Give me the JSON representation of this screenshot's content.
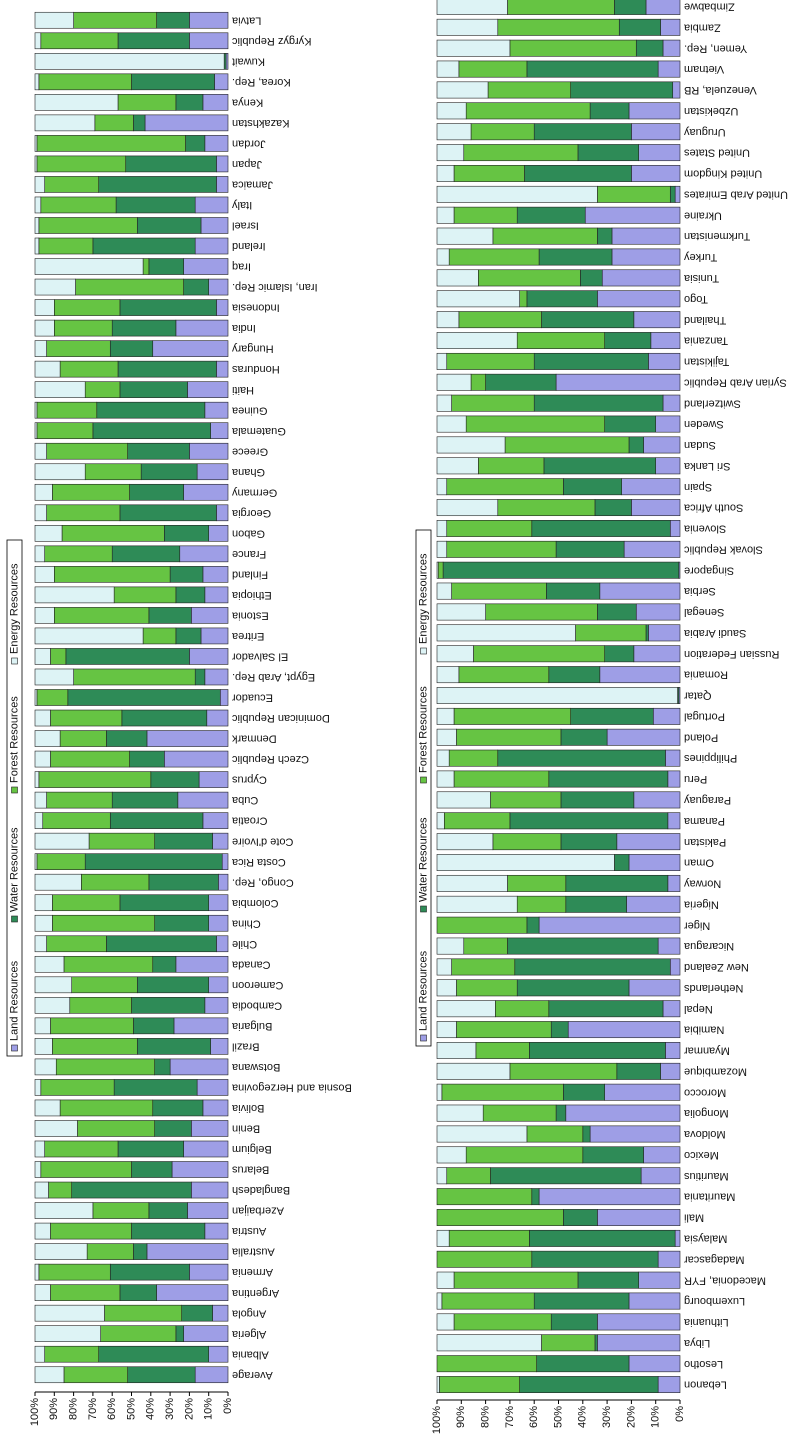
{
  "chart_data": [
    {
      "type": "bar",
      "orientation": "horizontal",
      "stacked": true,
      "categories": [
        "Average",
        "Albania",
        "Algeria",
        "Angola",
        "Argentina",
        "Armenia",
        "Australia",
        "Austria",
        "Azerbaijan",
        "Bangladesh",
        "Belarus",
        "Belgium",
        "Benin",
        "Bolivia",
        "Bosnia and Herzegovina",
        "Botswana",
        "Brazil",
        "Bulgaria",
        "Cambodia",
        "Cameroon",
        "Canada",
        "Chile",
        "China",
        "Colombia",
        "Congo, Rep.",
        "Costa Rica",
        "Cote d'Ivoire",
        "Croatia",
        "Cuba",
        "Cyprus",
        "Czech Republic",
        "Denmark",
        "Dominican Republic",
        "Ecuador",
        "Egypt, Arab Rep.",
        "El Salvador",
        "Eritrea",
        "Estonia",
        "Ethiopia",
        "Finland",
        "France",
        "Gabon",
        "Georgia",
        "Germany",
        "Ghana",
        "Greece",
        "Guatemala",
        "Guinea",
        "Haiti",
        "Honduras",
        "Hungary",
        "India",
        "Indonesia",
        "Iran, Islamic Rep.",
        "Iraq",
        "Ireland",
        "Israel",
        "Italy",
        "Jamaica",
        "Japan",
        "Jordan",
        "Kazakhstan",
        "Kenya",
        "Korea, Rep.",
        "Kuwait",
        "Kyrgyz Republic",
        "Latvia"
      ],
      "series": [
        {
          "name": "Land Resources",
          "color": "#9e9ee6",
          "values": [
            17,
            10,
            23,
            8,
            37,
            20,
            42,
            12,
            21,
            19,
            29,
            23,
            19,
            13,
            16,
            30,
            9,
            28,
            12,
            10,
            27,
            6,
            10,
            10,
            5,
            3,
            8,
            13,
            26,
            15,
            33,
            42,
            11,
            4,
            12,
            20,
            14,
            19,
            12,
            13,
            25,
            10,
            6,
            23,
            16,
            20,
            9,
            12,
            21,
            6,
            39,
            27,
            6,
            10,
            23,
            17,
            14,
            17,
            6,
            6,
            12,
            43,
            13,
            7,
            1,
            20,
            20
          ]
        },
        {
          "name": "Water Resources",
          "color": "#2e8b57",
          "values": [
            35,
            57,
            4,
            16,
            19,
            41,
            7,
            38,
            20,
            62,
            21,
            34,
            19,
            26,
            43,
            8,
            38,
            21,
            38,
            37,
            12,
            57,
            28,
            46,
            36,
            71,
            30,
            48,
            34,
            25,
            18,
            21,
            44,
            79,
            5,
            64,
            13,
            22,
            15,
            17,
            35,
            23,
            50,
            28,
            29,
            32,
            61,
            56,
            35,
            51,
            22,
            33,
            50,
            13,
            18,
            53,
            33,
            41,
            61,
            47,
            10,
            6,
            14,
            43,
            1,
            37,
            17
          ]
        },
        {
          "name": "Forest Resources",
          "color": "#66c443",
          "values": [
            33,
            28,
            39,
            40,
            36,
            37,
            24,
            42,
            29,
            12,
            47,
            38,
            40,
            48,
            38,
            51,
            44,
            43,
            32,
            34,
            46,
            31,
            53,
            35,
            35,
            25,
            34,
            35,
            34,
            58,
            41,
            24,
            37,
            16,
            63,
            8,
            17,
            49,
            32,
            60,
            35,
            53,
            38,
            40,
            29,
            42,
            29,
            31,
            18,
            30,
            33,
            30,
            34,
            56,
            3,
            28,
            51,
            39,
            28,
            46,
            77,
            20,
            30,
            48,
            0,
            40,
            43
          ]
        },
        {
          "name": "Energy Resources",
          "color": "#ddf3f5",
          "values": [
            15,
            5,
            34,
            36,
            8,
            2,
            27,
            8,
            30,
            7,
            3,
            5,
            22,
            13,
            3,
            11,
            9,
            8,
            18,
            19,
            15,
            6,
            9,
            9,
            24,
            1,
            28,
            4,
            6,
            2,
            8,
            13,
            8,
            1,
            20,
            8,
            56,
            10,
            41,
            10,
            5,
            14,
            6,
            9,
            26,
            6,
            1,
            1,
            26,
            13,
            6,
            10,
            10,
            21,
            56,
            2,
            2,
            3,
            5,
            1,
            1,
            31,
            43,
            2,
            98,
            3,
            20
          ]
        }
      ],
      "xlim": [
        0,
        100
      ],
      "xticks": [
        {
          "value": 0,
          "label": "0%"
        },
        {
          "value": 10,
          "label": "10%"
        },
        {
          "value": 20,
          "label": "20%"
        },
        {
          "value": 30,
          "label": "30%"
        },
        {
          "value": 40,
          "label": "40%"
        },
        {
          "value": 50,
          "label": "50%"
        },
        {
          "value": 60,
          "label": "60%"
        },
        {
          "value": 70,
          "label": "70%"
        },
        {
          "value": 80,
          "label": "80%"
        },
        {
          "value": 90,
          "label": "90%"
        },
        {
          "value": 100,
          "label": "100%"
        }
      ]
    },
    {
      "type": "bar",
      "orientation": "horizontal",
      "stacked": true,
      "categories": [
        "Lebanon",
        "Lesotho",
        "Libya",
        "Lithuania",
        "Luxembourg",
        "Macedonia, FYR",
        "Madagascar",
        "Malaysia",
        "Mali",
        "Mauritania",
        "Mauritius",
        "Mexico",
        "Moldova",
        "Mongolia",
        "Morocco",
        "Mozambique",
        "Myanmar",
        "Namibia",
        "Nepal",
        "Netherlands",
        "New Zealand",
        "Nicaragua",
        "Niger",
        "Nigeria",
        "Norway",
        "Oman",
        "Pakistan",
        "Panama",
        "Paraguay",
        "Peru",
        "Philippines",
        "Poland",
        "Portugal",
        "Qatar",
        "Romania",
        "Russian Federation",
        "Saudi Arabia",
        "Senegal",
        "Serbia",
        "Singapore",
        "Slovak Republic",
        "Slovenia",
        "South Africa",
        "Spain",
        "Sri Lanka",
        "Sudan",
        "Sweden",
        "Switzerland",
        "Syrian Arab Republic",
        "Tajikistan",
        "Tanzania",
        "Thailand",
        "Togo",
        "Tunisia",
        "Turkey",
        "Turkmenistan",
        "Ukraine",
        "United Arab Emirates",
        "United Kingdom",
        "United States",
        "Uruguay",
        "Uzbekistan",
        "Venezuela, RB",
        "Vietnam",
        "Yemen, Rep.",
        "Zambia",
        "Zimbabwe"
      ],
      "series": [
        {
          "name": "Land Resources",
          "color": "#9e9ee6",
          "values": [
            9,
            21,
            34,
            34,
            21,
            17,
            9,
            2,
            34,
            58,
            16,
            15,
            37,
            47,
            31,
            8,
            6,
            46,
            7,
            21,
            4,
            9,
            58,
            22,
            5,
            21,
            26,
            5,
            19,
            5,
            6,
            30,
            11,
            0.5,
            33,
            19,
            13,
            18,
            33,
            0.5,
            23,
            4,
            20,
            24,
            10,
            15,
            10,
            7,
            51,
            13,
            12,
            19,
            34,
            32,
            28,
            28,
            39,
            2,
            20,
            17,
            20,
            21,
            3,
            9,
            7,
            8,
            14
          ]
        },
        {
          "name": "Water Resources",
          "color": "#2e8b57",
          "values": [
            57,
            38,
            1,
            19,
            39,
            25,
            52,
            60,
            14,
            3,
            62,
            25,
            3,
            4,
            17,
            18,
            56,
            7,
            47,
            46,
            64,
            62,
            5,
            25,
            42,
            6,
            23,
            65,
            30,
            49,
            69,
            19,
            34,
            0.5,
            21,
            12,
            1,
            16,
            22,
            97,
            28,
            57,
            15,
            24,
            46,
            6,
            21,
            53,
            29,
            47,
            19,
            38,
            29,
            9,
            30,
            6,
            28,
            2,
            44,
            25,
            40,
            16,
            42,
            54,
            11,
            17,
            13
          ]
        },
        {
          "name": "Forest Resources",
          "color": "#66c443",
          "values": [
            33,
            41,
            22,
            40,
            38,
            51,
            39,
            33,
            52,
            39,
            18,
            48,
            23,
            30,
            50,
            44,
            22,
            39,
            22,
            25,
            26,
            18,
            37,
            20,
            24,
            0,
            28,
            27,
            29,
            39,
            20,
            43,
            48,
            0,
            37,
            54,
            29,
            46,
            39,
            2,
            45,
            35,
            40,
            48,
            27,
            51,
            57,
            34,
            6,
            36,
            36,
            34,
            3,
            42,
            37,
            43,
            26,
            30,
            29,
            47,
            26,
            51,
            34,
            28,
            52,
            50,
            44
          ]
        },
        {
          "name": "Energy Resources",
          "color": "#ddf3f5",
          "values": [
            1,
            0,
            43,
            7,
            2,
            7,
            0,
            5,
            0,
            0,
            4,
            12,
            37,
            19,
            2,
            30,
            16,
            8,
            24,
            8,
            6,
            11,
            0,
            33,
            29,
            73,
            23,
            3,
            22,
            7,
            5,
            8,
            7,
            99,
            9,
            15,
            57,
            20,
            6,
            0.5,
            4,
            4,
            25,
            4,
            17,
            28,
            12,
            6,
            14,
            4,
            33,
            9,
            34,
            17,
            5,
            23,
            7,
            66,
            7,
            11,
            14,
            12,
            21,
            9,
            30,
            25,
            29
          ]
        }
      ],
      "xlim": [
        0,
        100
      ],
      "xticks": [
        {
          "value": 0,
          "label": "0%"
        },
        {
          "value": 10,
          "label": "10%"
        },
        {
          "value": 20,
          "label": "20%"
        },
        {
          "value": 30,
          "label": "30%"
        },
        {
          "value": 40,
          "label": "40%"
        },
        {
          "value": 50,
          "label": "50%"
        },
        {
          "value": 60,
          "label": "60%"
        },
        {
          "value": 70,
          "label": "70%"
        },
        {
          "value": 80,
          "label": "80%"
        },
        {
          "value": 90,
          "label": "90%"
        },
        {
          "value": 100,
          "label": "100%"
        }
      ]
    }
  ]
}
